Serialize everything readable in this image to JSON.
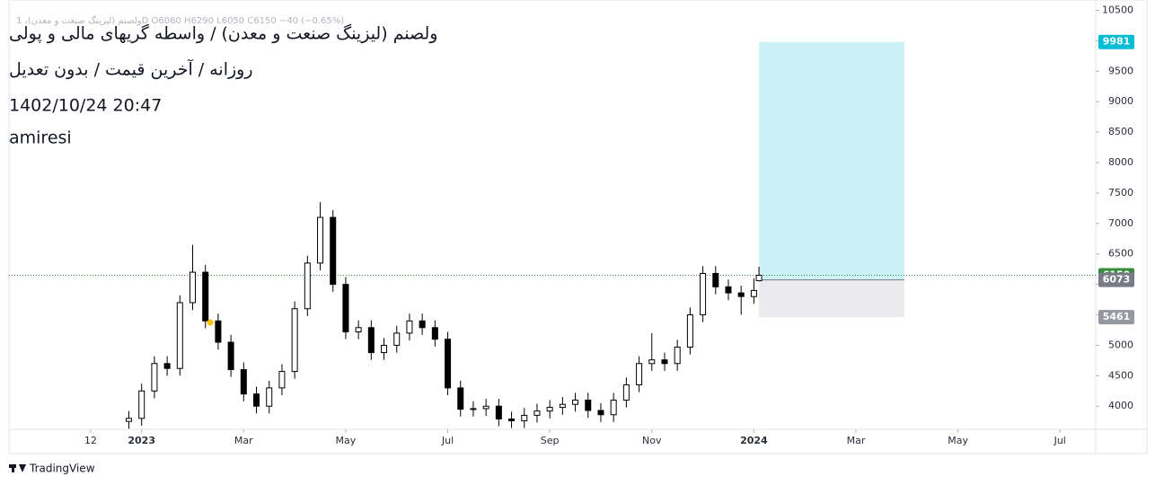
{
  "chart_data": {
    "type": "candlestick",
    "legend_text": "ولصنم (لیزینگ صنعت و معدن)، 1D  O6060  H6290  L6050  C6150  −40 (−0.65%)",
    "watermark": [
      "ولصنم (لیزینگ صنعت و معدن) / واسطه گریهای مالی و پولی",
      "روزانه / آخرین قیمت / بدون تعدیل",
      "1402/10/24 20:47",
      "amiresi"
    ],
    "brand": "TradingView",
    "color": "#000000",
    "x": [
      0.75,
      1,
      1.25,
      1.5,
      1.75,
      2,
      2.25,
      2.5,
      2.75,
      3,
      3.25,
      3.5,
      3.75,
      4,
      4.25,
      4.5,
      4.75,
      5,
      5.25,
      5.5,
      5.75,
      6,
      6.25,
      6.5,
      6.75,
      7,
      7.25,
      7.5,
      7.75,
      8,
      8.25,
      8.5,
      8.75,
      9,
      9.25,
      9.5,
      9.75,
      10,
      10.25,
      10.5,
      10.75,
      11,
      11.25,
      11.5,
      11.75,
      12,
      12.25,
      12.5,
      12.75,
      13,
      13.1
    ],
    "open": [
      3750,
      3800,
      4250,
      4700,
      4620,
      5700,
      6200,
      5400,
      5050,
      4600,
      4200,
      4000,
      4300,
      4570,
      5600,
      6350,
      7100,
      6000,
      5220,
      5290,
      4880,
      5000,
      5200,
      5400,
      5290,
      5100,
      4300,
      3950,
      3960,
      4000,
      3790,
      3760,
      3850,
      3920,
      3980,
      4030,
      4100,
      3930,
      3860,
      4100,
      4350,
      4700,
      4760,
      4700,
      4970,
      5500,
      6180,
      5960,
      5860,
      5800,
      6060
    ],
    "high": [
      3920,
      4370,
      4820,
      4820,
      5820,
      6650,
      6320,
      5520,
      5170,
      4720,
      4320,
      4420,
      4690,
      5720,
      6470,
      7350,
      7220,
      6120,
      5410,
      5410,
      5120,
      5320,
      5520,
      5520,
      5410,
      5220,
      4420,
      4080,
      4120,
      4120,
      3910,
      3970,
      4040,
      4100,
      4150,
      4220,
      4220,
      4050,
      4220,
      4470,
      4820,
      5200,
      4880,
      5090,
      5620,
      6300,
      6300,
      6080,
      5980,
      6100,
      6290
    ],
    "low": [
      3630,
      3680,
      4130,
      4500,
      4500,
      5580,
      5280,
      4930,
      4480,
      4080,
      3880,
      3880,
      4180,
      4450,
      5480,
      6230,
      5880,
      5100,
      5100,
      4760,
      4760,
      4880,
      5080,
      5170,
      4980,
      4180,
      3830,
      3830,
      3840,
      3670,
      3640,
      3640,
      3730,
      3800,
      3860,
      3910,
      3810,
      3740,
      3740,
      3980,
      4230,
      4580,
      4580,
      4580,
      4850,
      5380,
      5840,
      5740,
      5500,
      5680,
      6050
    ],
    "close": [
      3800,
      4250,
      4700,
      4620,
      5700,
      6200,
      5400,
      5050,
      4600,
      4200,
      4000,
      4300,
      4570,
      5600,
      6350,
      7100,
      6000,
      5220,
      5290,
      4880,
      5000,
      5200,
      5400,
      5290,
      5100,
      4300,
      3950,
      3960,
      4000,
      3790,
      3760,
      3850,
      3920,
      3980,
      4030,
      4100,
      3930,
      3860,
      4100,
      4350,
      4700,
      4760,
      4700,
      4970,
      5500,
      6180,
      5960,
      5860,
      5800,
      5900,
      6150
    ],
    "last_price": {
      "value": 6150,
      "color": "#388e3c"
    },
    "position": {
      "x": [
        13.1,
        15.95
      ],
      "target": 9981,
      "entry": 6073,
      "stop": 5461,
      "target_color": "#00bcd4",
      "entry_color": "#787b86",
      "stop_color": "#9598a1"
    },
    "xlim": [
      -1.6,
      19.7
    ],
    "xticks": [
      {
        "value": 0,
        "label": "12"
      },
      {
        "value": 1,
        "label": "2023"
      },
      {
        "value": 3,
        "label": "Mar"
      },
      {
        "value": 5,
        "label": "May"
      },
      {
        "value": 7,
        "label": "Jul"
      },
      {
        "value": 9,
        "label": "Sep"
      },
      {
        "value": 11,
        "label": "Nov"
      },
      {
        "value": 13,
        "label": "2024"
      },
      {
        "value": 15,
        "label": "Mar"
      },
      {
        "value": 17,
        "label": "May"
      },
      {
        "value": 19,
        "label": "Jul"
      }
    ],
    "ylim": [
      3620,
      10670
    ],
    "yticks": [
      4000,
      4500,
      5000,
      5500,
      6000,
      6500,
      7000,
      7500,
      8000,
      8500,
      9000,
      9500,
      10000,
      10500
    ]
  }
}
